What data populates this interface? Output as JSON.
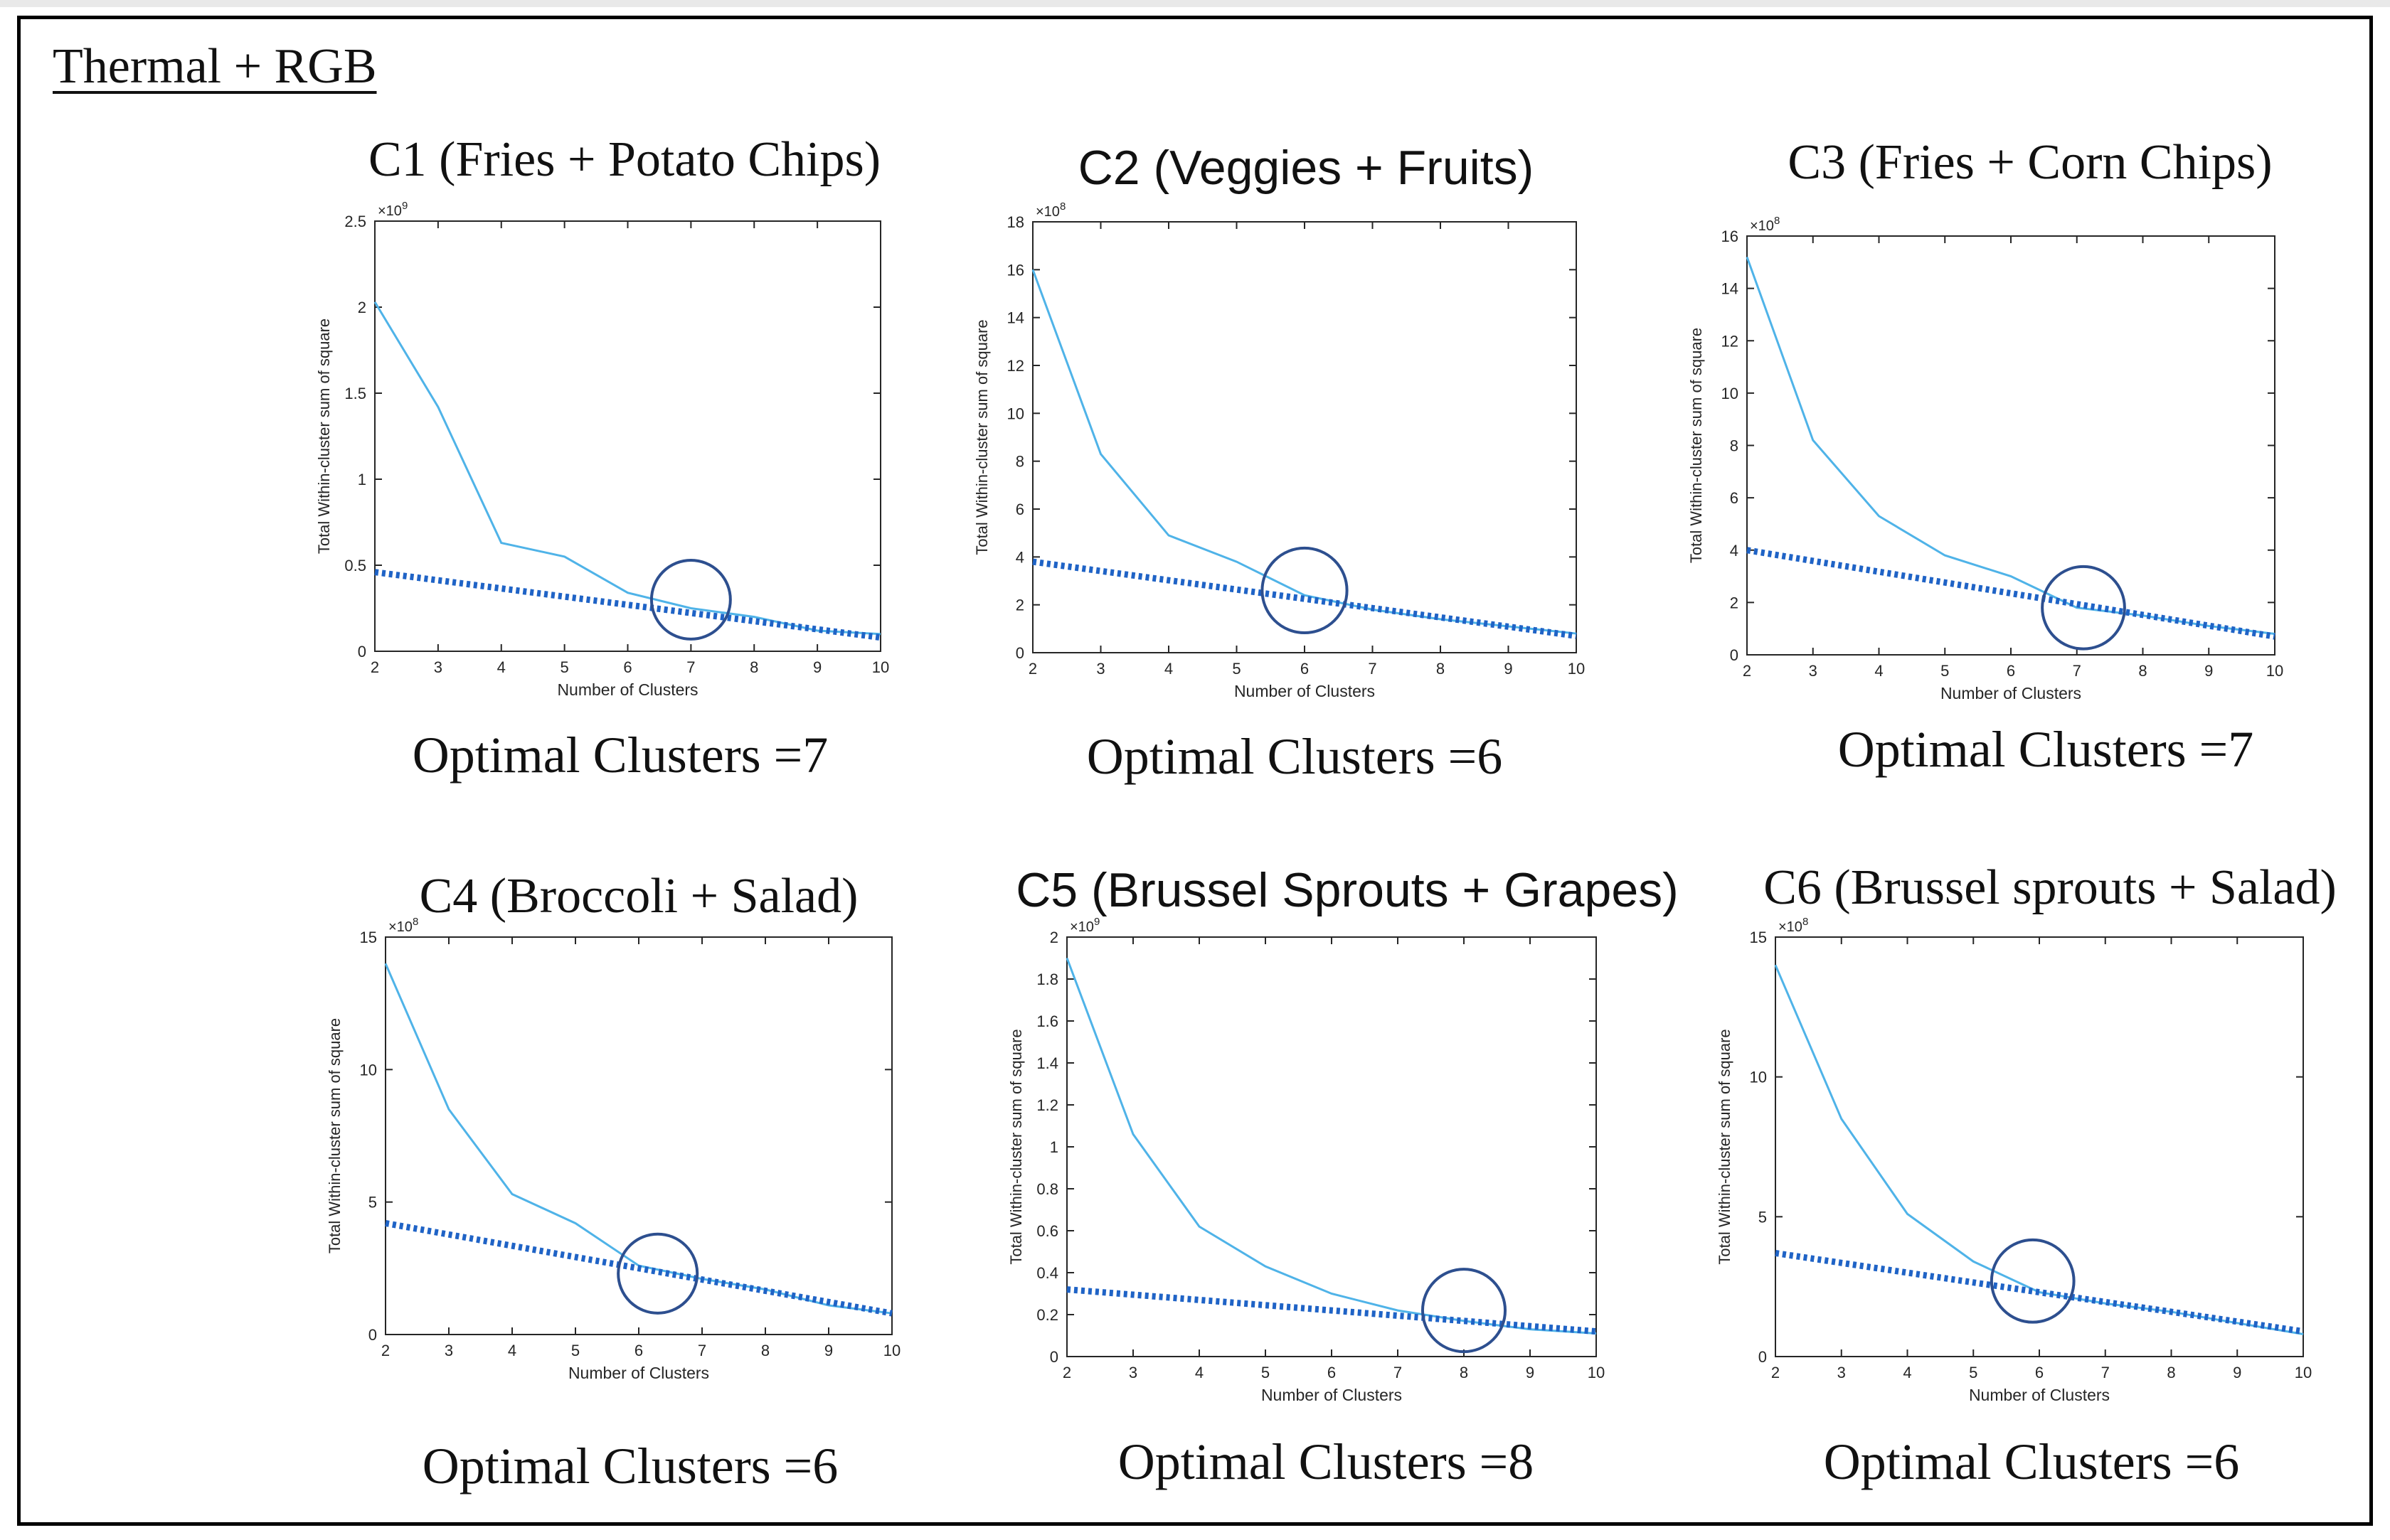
{
  "figure_title": "Thermal + RGB",
  "colors": {
    "curve": "#4fb3e8",
    "trend": "#1f63c6",
    "circle": "#2d4f8f",
    "axis": "#262626"
  },
  "chart_data": [
    {
      "id": "c1",
      "type": "line",
      "title": "C1 (Fries + Potato Chips)",
      "caption": "Optimal Clusters =7",
      "xlabel": "Number of Clusters",
      "ylabel": "Total Within-cluster sum of square",
      "exponent": "×10^9",
      "xlim": [
        2,
        10
      ],
      "ylim": [
        0,
        2.5
      ],
      "xticks": [
        2,
        3,
        4,
        5,
        6,
        7,
        8,
        9,
        10
      ],
      "yticks": [
        0,
        0.5,
        1,
        1.5,
        2,
        2.5
      ],
      "series": [
        {
          "style": "solid",
          "x": [
            2,
            3,
            4,
            5,
            6,
            7,
            8,
            9,
            10
          ],
          "values": [
            2.03,
            1.42,
            0.63,
            0.55,
            0.34,
            0.25,
            0.2,
            0.12,
            0.1
          ]
        },
        {
          "style": "dotted",
          "x": [
            2,
            10
          ],
          "values": [
            0.46,
            0.08
          ]
        }
      ],
      "highlight": {
        "x": 7,
        "y": 0.3
      }
    },
    {
      "id": "c2",
      "type": "line",
      "title": "C2 (Veggies + Fruits)",
      "caption": "Optimal Clusters =6",
      "xlabel": "Number of Clusters",
      "ylabel": "Total Within-cluster sum of square",
      "exponent": "×10^8",
      "xlim": [
        2,
        10
      ],
      "ylim": [
        0,
        18
      ],
      "xticks": [
        2,
        3,
        4,
        5,
        6,
        7,
        8,
        9,
        10
      ],
      "yticks": [
        0,
        2,
        4,
        6,
        8,
        10,
        12,
        14,
        16,
        18
      ],
      "series": [
        {
          "style": "solid",
          "x": [
            2,
            3,
            4,
            5,
            6,
            7,
            8,
            9,
            10
          ],
          "values": [
            16.0,
            8.3,
            4.9,
            3.8,
            2.4,
            1.8,
            1.4,
            1.1,
            0.8
          ]
        },
        {
          "style": "dotted",
          "x": [
            2,
            10
          ],
          "values": [
            3.8,
            0.7
          ]
        }
      ],
      "highlight": {
        "x": 6,
        "y": 2.6
      }
    },
    {
      "id": "c3",
      "type": "line",
      "title": "C3 (Fries +   Corn Chips)",
      "caption": "Optimal Clusters =7",
      "xlabel": "Number of Clusters",
      "ylabel": "Total Within-cluster sum of square",
      "exponent": "×10^8",
      "xlim": [
        2,
        10
      ],
      "ylim": [
        0,
        16
      ],
      "xticks": [
        2,
        3,
        4,
        5,
        6,
        7,
        8,
        9,
        10
      ],
      "yticks": [
        0,
        2,
        4,
        6,
        8,
        10,
        12,
        14,
        16
      ],
      "series": [
        {
          "style": "solid",
          "x": [
            2,
            3,
            4,
            5,
            6,
            7,
            8,
            9,
            10
          ],
          "values": [
            15.2,
            8.2,
            5.3,
            3.8,
            3.0,
            1.8,
            1.5,
            1.1,
            0.8
          ]
        },
        {
          "style": "dotted",
          "x": [
            2,
            10
          ],
          "values": [
            4.0,
            0.7
          ]
        }
      ],
      "highlight": {
        "x": 7.1,
        "y": 1.8
      }
    },
    {
      "id": "c4",
      "type": "line",
      "title": "C4 (Broccoli +  Salad)",
      "caption": "Optimal Clusters =6",
      "xlabel": "Number of Clusters",
      "ylabel": "Total Within-cluster sum of square",
      "exponent": "×10^8",
      "xlim": [
        2,
        10
      ],
      "ylim": [
        0,
        15
      ],
      "xticks": [
        2,
        3,
        4,
        5,
        6,
        7,
        8,
        9,
        10
      ],
      "yticks": [
        0,
        5,
        10,
        15
      ],
      "series": [
        {
          "style": "solid",
          "x": [
            2,
            3,
            4,
            5,
            6,
            7,
            8,
            9,
            10
          ],
          "values": [
            14.0,
            8.5,
            5.3,
            4.2,
            2.6,
            2.1,
            1.7,
            1.1,
            0.8
          ]
        },
        {
          "style": "dotted",
          "x": [
            2,
            10
          ],
          "values": [
            4.2,
            0.8
          ]
        }
      ],
      "highlight": {
        "x": 6.3,
        "y": 2.3
      }
    },
    {
      "id": "c5",
      "type": "line",
      "title": "C5 (Brussel Sprouts + Grapes)",
      "caption": "Optimal Clusters =8",
      "xlabel": "Number of Clusters",
      "ylabel": "Total Within-cluster sum of square",
      "exponent": "×10^9",
      "xlim": [
        2,
        10
      ],
      "ylim": [
        0,
        2
      ],
      "xticks": [
        2,
        3,
        4,
        5,
        6,
        7,
        8,
        9,
        10
      ],
      "yticks": [
        0,
        0.2,
        0.4,
        0.6,
        0.8,
        1,
        1.2,
        1.4,
        1.6,
        1.8,
        2
      ],
      "series": [
        {
          "style": "solid",
          "x": [
            2,
            3,
            4,
            5,
            6,
            7,
            8,
            9,
            10
          ],
          "values": [
            1.9,
            1.06,
            0.62,
            0.43,
            0.3,
            0.22,
            0.17,
            0.13,
            0.11
          ]
        },
        {
          "style": "dotted",
          "x": [
            2,
            10
          ],
          "values": [
            0.32,
            0.12
          ]
        }
      ],
      "highlight": {
        "x": 8,
        "y": 0.22
      }
    },
    {
      "id": "c6",
      "type": "line",
      "title": "C6 (Brussel sprouts +  Salad)",
      "caption": "Optimal Clusters =6",
      "xlabel": "Number of Clusters",
      "ylabel": "Total Within-cluster sum of square",
      "exponent": "×10^8",
      "xlim": [
        2,
        10
      ],
      "ylim": [
        0,
        15
      ],
      "xticks": [
        2,
        3,
        4,
        5,
        6,
        7,
        8,
        9,
        10
      ],
      "yticks": [
        0,
        5,
        10,
        15
      ],
      "series": [
        {
          "style": "solid",
          "x": [
            2,
            3,
            4,
            5,
            6,
            7,
            8,
            9,
            10
          ],
          "values": [
            14.0,
            8.5,
            5.1,
            3.4,
            2.3,
            1.9,
            1.6,
            1.2,
            0.8
          ]
        },
        {
          "style": "dotted",
          "x": [
            2,
            10
          ],
          "values": [
            3.7,
            0.9
          ]
        }
      ],
      "highlight": {
        "x": 5.9,
        "y": 2.7
      }
    }
  ]
}
